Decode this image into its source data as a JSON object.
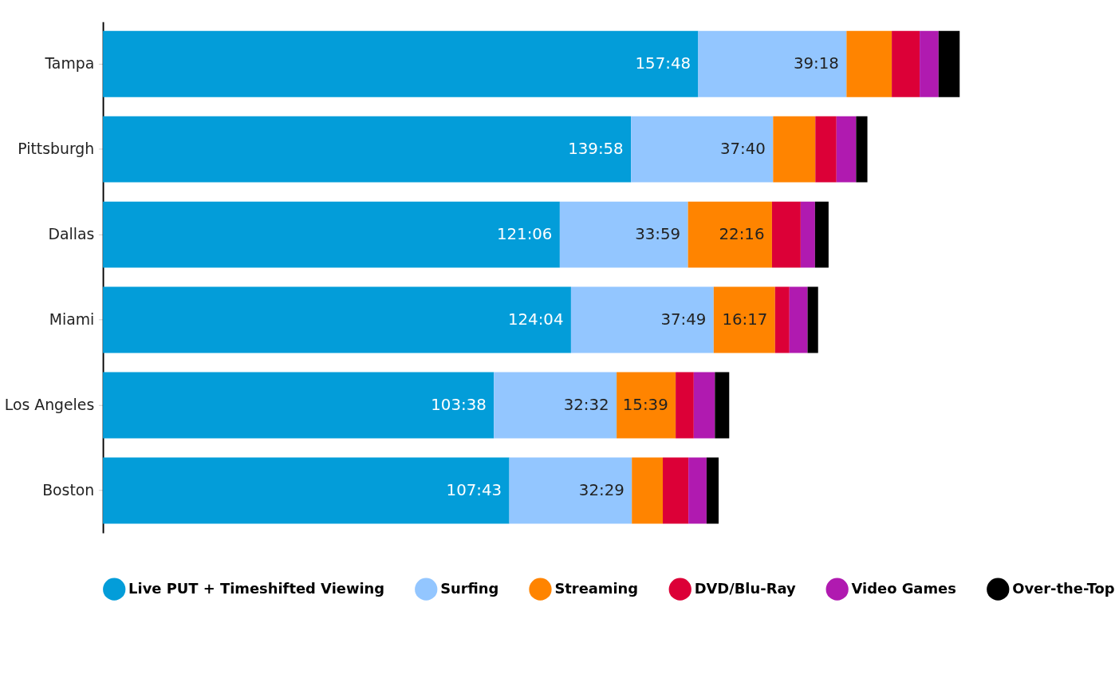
{
  "chart_data": {
    "type": "bar",
    "orientation": "horizontal",
    "stacked": true,
    "categories": [
      "Tampa",
      "Pittsburgh",
      "Dallas",
      "Miami",
      "Los Angeles",
      "Boston"
    ],
    "series": [
      {
        "name": "Live PUT + Timeshifted Viewing",
        "color": "#039dd9",
        "values": [
          157.8,
          139.97,
          121.1,
          124.07,
          103.63,
          107.72
        ],
        "value_labels": [
          "157:48",
          "139:58",
          "121:06",
          "124:04",
          "103:38",
          "107:43"
        ]
      },
      {
        "name": "Surfing",
        "color": "#93c6ff",
        "values": [
          39.3,
          37.67,
          33.98,
          37.82,
          32.53,
          32.48
        ],
        "value_labels": [
          "39:18",
          "37:40",
          "33:59",
          "37:49",
          "32:32",
          "32:29"
        ]
      },
      {
        "name": "Streaming",
        "color": "#ff8400",
        "values": [
          12.0,
          11.2,
          22.27,
          16.28,
          15.65,
          8.2
        ],
        "value_labels": [
          null,
          null,
          "22:16",
          "16:17",
          "15:39",
          null
        ]
      },
      {
        "name": "DVD/Blu-Ray",
        "color": "#dc0037",
        "values": [
          7.4,
          5.6,
          7.6,
          3.8,
          4.8,
          6.8
        ]
      },
      {
        "name": "Video Games",
        "color": "#b01ab0",
        "values": [
          5.0,
          5.2,
          3.8,
          4.8,
          5.6,
          4.8
        ]
      },
      {
        "name": "Over-the-Top",
        "color": "#000000",
        "values": [
          5.6,
          3.0,
          3.6,
          2.8,
          3.8,
          3.2
        ]
      }
    ],
    "legend": "bottom",
    "marker": "circle",
    "grid": false
  }
}
